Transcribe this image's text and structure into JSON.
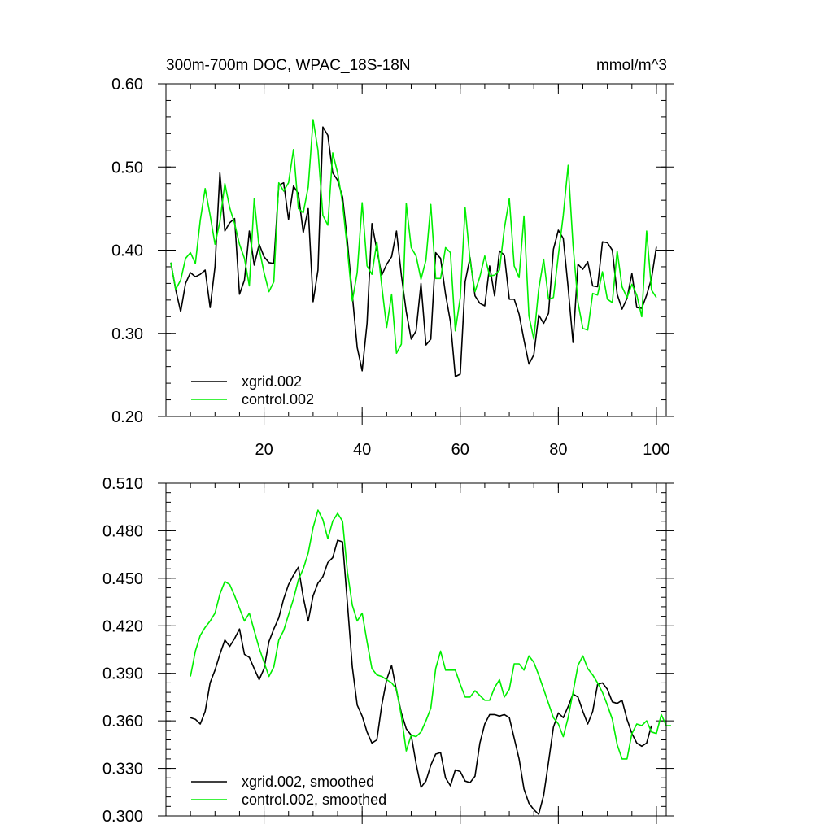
{
  "colors": {
    "xgrid": "#000000",
    "control": "#00ee00"
  },
  "chart_data": [
    {
      "type": "line",
      "title": "300m-700m DOC, WPAC_18S-18N",
      "units": "mmol/m^3",
      "xlim": [
        0,
        102
      ],
      "ylim": [
        0.2,
        0.6
      ],
      "x_ticks": [
        20,
        40,
        60,
        80,
        100
      ],
      "x_tick_labels": [
        "20",
        "40",
        "60",
        "80",
        "100"
      ],
      "y_ticks": [
        0.2,
        0.3,
        0.4,
        0.5,
        0.6
      ],
      "y_tick_labels": [
        "0.20",
        "0.30",
        "0.40",
        "0.50",
        "0.60"
      ],
      "x_minor_step": 5,
      "y_minor_step": 0.02,
      "legend_placement": "bottom-left",
      "series": [
        {
          "name": "xgrid.002",
          "color": "#000000",
          "x_start": 1,
          "values": [
            0.385,
            0.352,
            0.326,
            0.36,
            0.373,
            0.368,
            0.371,
            0.376,
            0.331,
            0.38,
            0.493,
            0.423,
            0.433,
            0.438,
            0.347,
            0.364,
            0.423,
            0.382,
            0.407,
            0.392,
            0.385,
            0.384,
            0.478,
            0.481,
            0.437,
            0.477,
            0.468,
            0.421,
            0.45,
            0.338,
            0.376,
            0.548,
            0.538,
            0.493,
            0.484,
            0.464,
            0.41,
            0.346,
            0.283,
            0.255,
            0.312,
            0.432,
            0.4,
            0.37,
            0.383,
            0.392,
            0.423,
            0.37,
            0.326,
            0.293,
            0.303,
            0.36,
            0.286,
            0.293,
            0.397,
            0.39,
            0.347,
            0.314,
            0.248,
            0.251,
            0.362,
            0.391,
            0.345,
            0.336,
            0.333,
            0.381,
            0.345,
            0.399,
            0.394,
            0.341,
            0.341,
            0.323,
            0.292,
            0.263,
            0.274,
            0.322,
            0.312,
            0.324,
            0.401,
            0.424,
            0.414,
            0.355,
            0.289,
            0.383,
            0.377,
            0.386,
            0.357,
            0.356,
            0.41,
            0.409,
            0.4,
            0.347,
            0.329,
            0.342,
            0.372,
            0.331,
            0.33,
            0.346,
            0.366,
            0.404
          ]
        },
        {
          "name": "control.002",
          "color": "#00ee00",
          "x_start": 1,
          "values": [
            0.385,
            0.353,
            0.364,
            0.39,
            0.397,
            0.384,
            0.436,
            0.474,
            0.442,
            0.407,
            0.434,
            0.48,
            0.451,
            0.432,
            0.407,
            0.39,
            0.357,
            0.462,
            0.402,
            0.373,
            0.35,
            0.362,
            0.481,
            0.471,
            0.481,
            0.521,
            0.45,
            0.445,
            0.476,
            0.557,
            0.52,
            0.442,
            0.43,
            0.517,
            0.493,
            0.456,
            0.4,
            0.339,
            0.373,
            0.457,
            0.381,
            0.371,
            0.41,
            0.357,
            0.307,
            0.347,
            0.276,
            0.287,
            0.456,
            0.403,
            0.393,
            0.365,
            0.388,
            0.455,
            0.366,
            0.366,
            0.403,
            0.397,
            0.303,
            0.343,
            0.451,
            0.388,
            0.35,
            0.368,
            0.393,
            0.369,
            0.37,
            0.376,
            0.426,
            0.462,
            0.381,
            0.367,
            0.441,
            0.321,
            0.293,
            0.353,
            0.389,
            0.341,
            0.343,
            0.394,
            0.442,
            0.502,
            0.406,
            0.337,
            0.306,
            0.304,
            0.348,
            0.346,
            0.374,
            0.341,
            0.337,
            0.399,
            0.356,
            0.343,
            0.359,
            0.346,
            0.32,
            0.423,
            0.352,
            0.343
          ]
        }
      ]
    },
    {
      "type": "line",
      "xlim": [
        0,
        102
      ],
      "ylim": [
        0.3,
        0.51
      ],
      "x_ticks": [
        20,
        40,
        60,
        80,
        100
      ],
      "x_tick_labels": [],
      "y_ticks": [
        0.3,
        0.33,
        0.36,
        0.39,
        0.42,
        0.45,
        0.48,
        0.51
      ],
      "y_tick_labels": [
        "0.300",
        "0.330",
        "0.360",
        "0.390",
        "0.420",
        "0.450",
        "0.480",
        "0.510"
      ],
      "x_minor_step": 5,
      "y_minor_step": 0.006,
      "legend_placement": "bottom-left",
      "series": [
        {
          "name": "xgrid.002, smoothed",
          "color": "#000000",
          "x_start": 5,
          "values": [
            0.362,
            0.361,
            0.358,
            0.366,
            0.384,
            0.392,
            0.402,
            0.411,
            0.407,
            0.412,
            0.418,
            0.402,
            0.4,
            0.393,
            0.386,
            0.393,
            0.41,
            0.418,
            0.425,
            0.437,
            0.446,
            0.452,
            0.457,
            0.438,
            0.423,
            0.439,
            0.447,
            0.451,
            0.46,
            0.463,
            0.474,
            0.473,
            0.434,
            0.394,
            0.37,
            0.363,
            0.353,
            0.346,
            0.348,
            0.37,
            0.386,
            0.395,
            0.379,
            0.365,
            0.355,
            0.351,
            0.333,
            0.318,
            0.322,
            0.332,
            0.339,
            0.34,
            0.324,
            0.319,
            0.329,
            0.328,
            0.322,
            0.321,
            0.325,
            0.346,
            0.358,
            0.364,
            0.364,
            0.363,
            0.364,
            0.362,
            0.349,
            0.336,
            0.317,
            0.308,
            0.304,
            0.301,
            0.313,
            0.334,
            0.356,
            0.365,
            0.362,
            0.369,
            0.377,
            0.375,
            0.366,
            0.358,
            0.366,
            0.383,
            0.384,
            0.38,
            0.372,
            0.371,
            0.373,
            0.361,
            0.352,
            0.346,
            0.344,
            0.346,
            0.357
          ]
        },
        {
          "name": "control.002, smoothed",
          "color": "#00ee00",
          "x_start": 5,
          "values": [
            0.388,
            0.404,
            0.414,
            0.419,
            0.423,
            0.428,
            0.44,
            0.448,
            0.446,
            0.439,
            0.431,
            0.423,
            0.428,
            0.417,
            0.406,
            0.397,
            0.388,
            0.394,
            0.411,
            0.417,
            0.427,
            0.437,
            0.449,
            0.456,
            0.466,
            0.482,
            0.493,
            0.487,
            0.475,
            0.486,
            0.491,
            0.486,
            0.454,
            0.433,
            0.423,
            0.428,
            0.41,
            0.393,
            0.389,
            0.388,
            0.386,
            0.384,
            0.38,
            0.363,
            0.341,
            0.351,
            0.35,
            0.353,
            0.36,
            0.368,
            0.393,
            0.404,
            0.392,
            0.392,
            0.392,
            0.383,
            0.375,
            0.375,
            0.379,
            0.376,
            0.373,
            0.373,
            0.381,
            0.386,
            0.375,
            0.38,
            0.396,
            0.396,
            0.392,
            0.401,
            0.397,
            0.389,
            0.38,
            0.371,
            0.362,
            0.358,
            0.35,
            0.362,
            0.378,
            0.395,
            0.401,
            0.393,
            0.389,
            0.384,
            0.378,
            0.37,
            0.361,
            0.345,
            0.336,
            0.336,
            0.352,
            0.358,
            0.357,
            0.36,
            0.353,
            0.352,
            0.364,
            0.357,
            0.357
          ]
        }
      ]
    }
  ]
}
